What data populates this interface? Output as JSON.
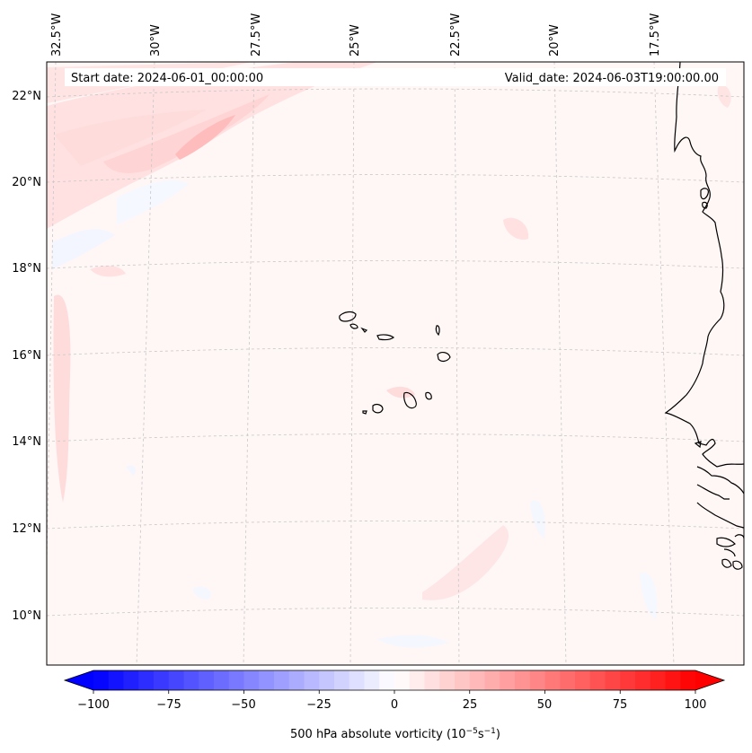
{
  "header": {
    "start_date": "Start date: 2024-06-01_00:00:00",
    "valid_date": "Valid_date: 2024-06-03T19:00:00.00"
  },
  "longitude_labels": [
    "32.5°W",
    "30°W",
    "27.5°W",
    "25°W",
    "22.5°W",
    "20°W",
    "17.5°W"
  ],
  "latitude_labels": [
    "22°N",
    "20°N",
    "18°N",
    "16°N",
    "14°N",
    "12°N",
    "10°N"
  ],
  "colorbar": {
    "ticks": [
      "−100",
      "−75",
      "−50",
      "−25",
      "0",
      "25",
      "50",
      "75",
      "100"
    ],
    "label": "500 hPa absolute vorticity (10",
    "label_exp1": "−5",
    "label_mid": "s",
    "label_exp2": "−1",
    "label_end": ")",
    "min": -100,
    "max": 100,
    "low_color": "#0000ff",
    "mid_color": "#ffffff",
    "high_color": "#ff0000"
  },
  "colors": {
    "coastline": "#000000",
    "gridline": "#c8c8c8",
    "field_base": "#fff6f6"
  }
}
